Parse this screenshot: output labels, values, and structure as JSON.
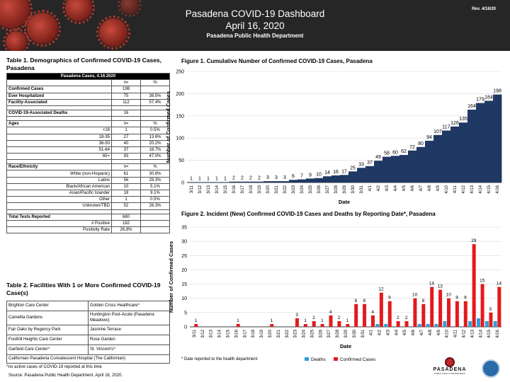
{
  "header": {
    "title": "Pasadena COVID-19 Dashboard",
    "date": "April 16, 2020",
    "department": "Pasadena Public Health Department",
    "revision": "Rev. 4/16/20"
  },
  "table1": {
    "title": "Table 1. Demographics of Confirmed COVID-19 Cases, Pasadena",
    "caption": "Pasadena Cases, 4.16.2020",
    "col_n": "n=",
    "col_pct": "%",
    "rows": {
      "confirmed": {
        "label": "Confirmed Cases",
        "n": "198",
        "pct": ""
      },
      "hosp": {
        "label": "Ever Hospitalized",
        "n": "75",
        "pct": "38.5%"
      },
      "facility": {
        "label": "Facility-Associated",
        "n": "112",
        "pct": "57.4%"
      },
      "deaths": {
        "label": "COVID-19-Associated Deaths",
        "n": "16",
        "pct": ""
      },
      "ages_label": "Ages",
      "ages": [
        {
          "label": "<18",
          "n": "1",
          "pct": "0.5%"
        },
        {
          "label": "18-35",
          "n": "27",
          "pct": "13.6%"
        },
        {
          "label": "36-50",
          "n": "40",
          "pct": "20.2%"
        },
        {
          "label": "51-64",
          "n": "37",
          "pct": "18.7%"
        },
        {
          "label": "65+",
          "n": "93",
          "pct": "47.0%"
        }
      ],
      "race_label": "Race/Ethnicity",
      "race": [
        {
          "label": "White (non-Hispanic)",
          "n": "61",
          "pct": "30.8%"
        },
        {
          "label": "Latinx",
          "n": "56",
          "pct": "28.3%"
        },
        {
          "label": "Black/African American",
          "n": "10",
          "pct": "5.1%"
        },
        {
          "label": "Asian/Pacific Islander",
          "n": "18",
          "pct": "9.1%"
        },
        {
          "label": "Other",
          "n": "1",
          "pct": "0.5%"
        },
        {
          "label": "Unknown/TBD",
          "n": "52",
          "pct": "26.3%"
        }
      ],
      "tests": {
        "label": "Total Tests Reported",
        "n": "680"
      },
      "positive": {
        "label": "# Positive",
        "n": "182"
      },
      "rate": {
        "label": "Positivity Rate",
        "n": "26.8%"
      }
    }
  },
  "table2": {
    "title": "Table 2. Facilities With 1 or More Confirmed COVID-19 Case(s)",
    "rows": [
      [
        "Brighton Care Center",
        "Golden Cross Healthcare^"
      ],
      [
        "Camellia Gardens",
        "Huntington Post-Acute (Pasadena Meadows)"
      ],
      [
        "Fair Oaks by Regency Park",
        "Jasmine Terrace"
      ],
      [
        "Foothill Heights Care Center",
        "Rose Garden"
      ],
      [
        "Garfield Care Center^",
        "St. Vincent's^"
      ],
      [
        "Californian Pasadena Convalescent Hospital (The Californian)",
        ""
      ]
    ],
    "footnote": "^no active cases of COVID-19 reported at this time",
    "source": "Source: Pasadena Public Health Department. April 16, 2020."
  },
  "figure1": {
    "title": "Figure 1. Cumulative Number of Confirmed COVID-19 Cases, Pasadena"
  },
  "figure2": {
    "title": "Figure 2. Incident (New) Confirmed COVID-19 Cases and Deaths by Reporting Date*, Pasadena",
    "footnote": "* Date reported to the health department"
  },
  "logo": {
    "name": "PASADENA",
    "sub": "PUBLIC HEALTH DEPARTMENT"
  },
  "chart_data": [
    {
      "type": "bar",
      "title": "Figure 1. Cumulative Number of Confirmed COVID-19 Cases, Pasadena",
      "xlabel": "Date",
      "ylabel": "Number of Confirmed Cases",
      "ylim": [
        0,
        250
      ],
      "yticks": [
        0,
        50,
        100,
        150,
        200,
        250
      ],
      "categories": [
        "3/11",
        "3/12",
        "3/13",
        "3/14",
        "3/15",
        "3/16",
        "3/17",
        "3/18",
        "3/19",
        "3/20",
        "3/21",
        "3/22",
        "3/23",
        "3/24",
        "3/25",
        "3/26",
        "3/27",
        "3/28",
        "3/29",
        "3/30",
        "3/31",
        "4/1",
        "4/2",
        "4/3",
        "4/4",
        "4/5",
        "4/6",
        "4/7",
        "4/8",
        "4/9",
        "4/10",
        "4/11",
        "4/12",
        "4/13",
        "4/14",
        "4/15",
        "4/16"
      ],
      "values": [
        1,
        1,
        1,
        1,
        1,
        2,
        2,
        2,
        2,
        3,
        3,
        3,
        6,
        7,
        9,
        10,
        14,
        16,
        17,
        25,
        33,
        37,
        49,
        58,
        60,
        62,
        72,
        80,
        94,
        107,
        117,
        126,
        135,
        164,
        179,
        184,
        198
      ],
      "color": "#1f3864",
      "style": "area-steps",
      "grid": true
    },
    {
      "type": "bar",
      "title": "Figure 2. Incident (New) Confirmed COVID-19 Cases and Deaths by Reporting Date*, Pasadena",
      "xlabel": "Date",
      "ylabel": "Number of Confirmed Cases",
      "ylim": [
        0,
        35
      ],
      "yticks": [
        0,
        5,
        10,
        15,
        20,
        25,
        30,
        35
      ],
      "categories": [
        "3/11",
        "3/12",
        "3/13",
        "3/14",
        "3/15",
        "3/16",
        "3/17",
        "3/18",
        "3/19",
        "3/20",
        "3/21",
        "3/22",
        "3/23",
        "3/24",
        "3/25",
        "3/26",
        "3/27",
        "3/28",
        "3/29",
        "3/30",
        "3/31",
        "4/1",
        "4/2",
        "4/3",
        "4/4",
        "4/5",
        "4/6",
        "4/7",
        "4/8",
        "4/9",
        "4/10",
        "4/11",
        "4/12",
        "4/13",
        "4/14",
        "4/15",
        "4/16"
      ],
      "series": [
        {
          "name": "Deaths",
          "color": "#2e9fd8",
          "values": [
            0,
            0,
            0,
            0,
            0,
            0,
            0,
            0,
            0,
            0,
            0,
            0,
            0,
            0,
            0,
            0,
            0,
            0,
            0,
            0,
            0,
            0,
            1,
            1,
            0,
            0,
            0,
            1,
            1,
            1,
            2,
            0,
            0,
            2,
            3,
            2,
            2
          ]
        },
        {
          "name": "Confirmed Cases",
          "color": "#e31a1c",
          "values": [
            1,
            0,
            0,
            0,
            0,
            1,
            0,
            0,
            0,
            1,
            0,
            0,
            3,
            1,
            2,
            1,
            4,
            2,
            1,
            8,
            8,
            4,
            12,
            9,
            2,
            2,
            10,
            8,
            14,
            13,
            10,
            9,
            9,
            29,
            15,
            5,
            14
          ]
        }
      ],
      "data_labels": [
        "1",
        "",
        "",
        "",
        "",
        "1",
        "",
        "",
        "",
        "1",
        "",
        "",
        "3",
        "1",
        "2",
        "1",
        "4",
        "2",
        "1",
        "8",
        "8",
        "4",
        "12",
        "9",
        "2",
        "2",
        "10",
        "8",
        "14",
        "13",
        "10",
        "9",
        "9",
        "29",
        "15",
        "5",
        "14"
      ],
      "legend": "bottom",
      "grid": true
    }
  ]
}
